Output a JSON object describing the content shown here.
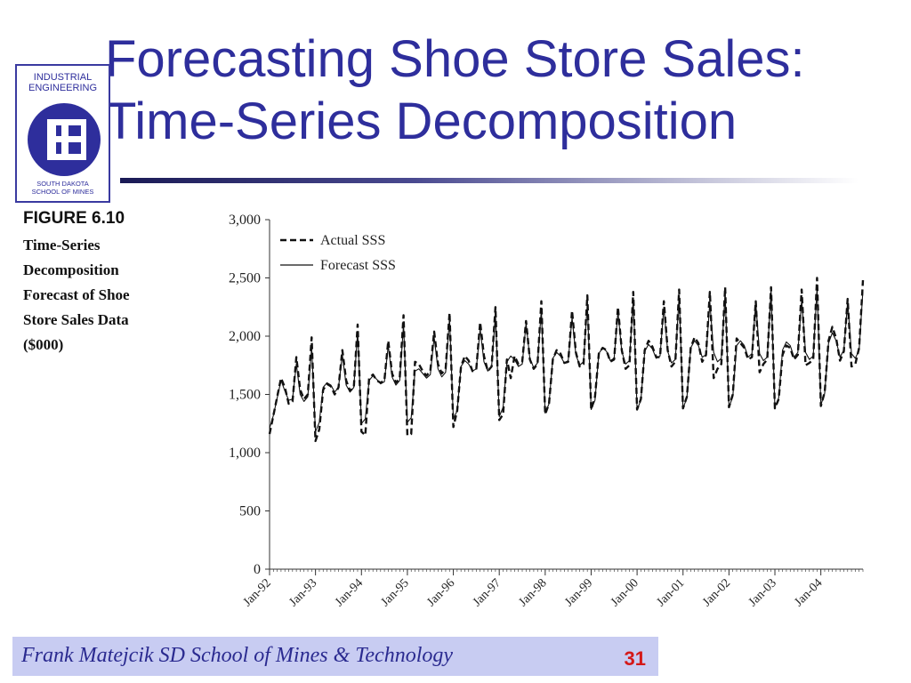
{
  "slide": {
    "title_line1": "Forecasting Shoe Store Sales:",
    "title_line2": "Time-Series Decomposition"
  },
  "logo": {
    "top_text_1": "INDUSTRIAL",
    "top_text_2": "ENGINEERING",
    "bottom_text_1": "SOUTH DAKOTA",
    "bottom_text_2": "SCHOOL OF MINES"
  },
  "caption": {
    "figure": "FIGURE 6.10",
    "lines": [
      "Time-Series",
      "Decomposition",
      "Forecast of Shoe",
      "Store Sales Data",
      "($000)"
    ]
  },
  "footer": {
    "author": "Frank  Matejcik  SD School of Mines & Technology",
    "page_number": "31"
  },
  "colors": {
    "title": "#2e2e9c",
    "footer_bg": "#c8ccf2",
    "page_number": "#d41818"
  },
  "chart_data": {
    "type": "line",
    "title": "",
    "xlabel": "",
    "ylabel": "",
    "ylim": [
      0,
      3000
    ],
    "y_ticks": [
      "0",
      "500",
      "1,000",
      "1,500",
      "2,000",
      "2,500",
      "3,000"
    ],
    "x_ticks": [
      "Jan-92",
      "Jan-93",
      "Jan-94",
      "Jan-95",
      "Jan-96",
      "Jan-97",
      "Jan-98",
      "Jan-99",
      "Jan-00",
      "Jan-01",
      "Jan-02",
      "Jan-03",
      "Jan-04"
    ],
    "legend": {
      "position": "top-left"
    },
    "grid": false,
    "series": [
      {
        "name": "Actual SSS",
        "style": "dashed",
        "values": [
          1160,
          1320,
          1480,
          1640,
          1560,
          1420,
          1440,
          1820,
          1540,
          1460,
          1500,
          1990,
          1100,
          1200,
          1540,
          1590,
          1570,
          1500,
          1560,
          1880,
          1620,
          1530,
          1560,
          2100,
          1180,
          1150,
          1640,
          1670,
          1620,
          1600,
          1620,
          1960,
          1680,
          1600,
          1640,
          2180,
          1150,
          1160,
          1780,
          1760,
          1700,
          1660,
          1700,
          2040,
          1760,
          1680,
          1720,
          2200,
          1220,
          1360,
          1740,
          1830,
          1790,
          1700,
          1720,
          2120,
          1830,
          1700,
          1740,
          2250,
          1280,
          1330,
          1800,
          1640,
          1830,
          1760,
          1780,
          2130,
          1800,
          1720,
          1760,
          2300,
          1330,
          1420,
          1800,
          1880,
          1850,
          1770,
          1780,
          2220,
          1860,
          1740,
          1760,
          2350,
          1370,
          1480,
          1850,
          1900,
          1880,
          1780,
          1800,
          2250,
          1880,
          1720,
          1750,
          2380,
          1370,
          1460,
          1880,
          1960,
          1910,
          1820,
          1820,
          2300,
          1880,
          1740,
          1780,
          2400,
          1380,
          1480,
          1900,
          1990,
          1940,
          1780,
          1840,
          2380,
          1640,
          1720,
          1760,
          2420,
          1390,
          1500,
          1980,
          1940,
          1900,
          1800,
          1820,
          2300,
          1690,
          1760,
          1800,
          2420,
          1380,
          1460,
          1840,
          1920,
          1900,
          1800,
          1840,
          2400,
          1750,
          1770,
          1800,
          2500,
          1400,
          1520,
          1960,
          2080,
          1980,
          1790,
          1870,
          2320,
          1740,
          1760,
          1900,
          2480
        ]
      },
      {
        "name": "Forecast SSS",
        "style": "solid",
        "values": [
          1210,
          1320,
          1470,
          1620,
          1530,
          1450,
          1460,
          1760,
          1500,
          1440,
          1480,
          1900,
          1180,
          1260,
          1560,
          1600,
          1580,
          1520,
          1560,
          1840,
          1580,
          1520,
          1560,
          2040,
          1250,
          1290,
          1620,
          1660,
          1630,
          1590,
          1610,
          1920,
          1650,
          1580,
          1620,
          2100,
          1260,
          1300,
          1700,
          1720,
          1680,
          1640,
          1670,
          1990,
          1720,
          1650,
          1690,
          2150,
          1290,
          1360,
          1740,
          1790,
          1760,
          1700,
          1720,
          2060,
          1780,
          1700,
          1740,
          2190,
          1310,
          1390,
          1780,
          1830,
          1800,
          1740,
          1760,
          2110,
          1810,
          1730,
          1770,
          2230,
          1340,
          1420,
          1810,
          1860,
          1830,
          1770,
          1790,
          2160,
          1840,
          1750,
          1780,
          2280,
          1370,
          1450,
          1850,
          1900,
          1870,
          1790,
          1810,
          2210,
          1870,
          1760,
          1790,
          2320,
          1370,
          1450,
          1870,
          1930,
          1890,
          1810,
          1830,
          2250,
          1870,
          1770,
          1800,
          2350,
          1380,
          1470,
          1900,
          1960,
          1920,
          1820,
          1840,
          2290,
          1860,
          1780,
          1810,
          2370,
          1390,
          1480,
          1920,
          1960,
          1920,
          1820,
          1850,
          2290,
          1850,
          1790,
          1820,
          2390,
          1390,
          1470,
          1880,
          1950,
          1920,
          1820,
          1860,
          2310,
          1860,
          1800,
          1830,
          2410,
          1410,
          1510,
          1940,
          2030,
          1960,
          1820,
          1880,
          2300,
          1850,
          1810,
          1880,
          2400
        ]
      }
    ]
  }
}
